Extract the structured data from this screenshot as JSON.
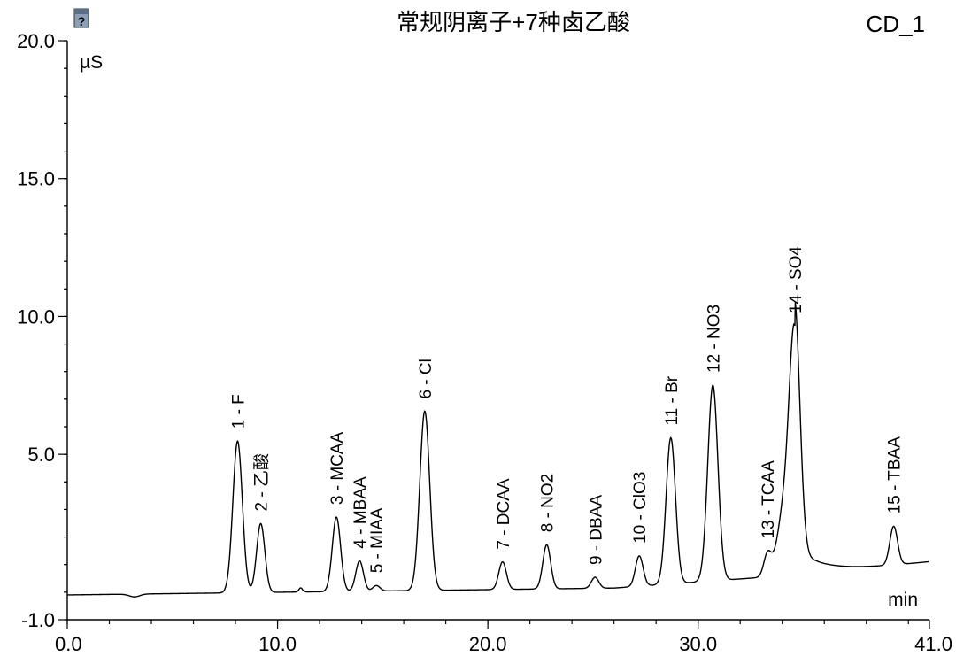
{
  "header": {
    "title": "常规阴离子+7种卤乙酸",
    "channel": "CD_1",
    "help_icon": "help-icon"
  },
  "chart_data": {
    "type": "line",
    "title": "常规阴离子+7种卤乙酸",
    "channel": "CD_1",
    "xlabel": "min",
    "ylabel": "µS",
    "xlim": [
      0.0,
      41.0
    ],
    "ylim": [
      -1.0,
      20.0
    ],
    "x_ticks": [
      0.0,
      10.0,
      20.0,
      30.0,
      41.0
    ],
    "x_tick_labels": [
      "0.0",
      "10.0",
      "20.0",
      "30.0",
      "41.0"
    ],
    "y_ticks": [
      -1.0,
      5.0,
      10.0,
      15.0,
      20.0
    ],
    "y_tick_labels": [
      "-1.0",
      "5.0",
      "10.0",
      "15.0",
      "20.0"
    ],
    "grid": false,
    "baseline": {
      "start": -0.1,
      "end": 1.1
    },
    "peaks": [
      {
        "label": "1 - F",
        "rt": 8.1,
        "height": 5.5
      },
      {
        "label": "2 - 乙酸",
        "rt": 9.2,
        "height": 2.5
      },
      {
        "label": "3 - MCAA",
        "rt": 12.8,
        "height": 2.7
      },
      {
        "label": "4 - MBAA",
        "rt": 13.9,
        "height": 1.1
      },
      {
        "label": "5 - MIAA",
        "rt": 14.7,
        "height": 0.2
      },
      {
        "label": "6 - Cl",
        "rt": 17.0,
        "height": 6.5
      },
      {
        "label": "7 - DCAA",
        "rt": 20.7,
        "height": 1.0
      },
      {
        "label": "8 - NO2",
        "rt": 22.8,
        "height": 1.6
      },
      {
        "label": "9 - DBAA",
        "rt": 25.1,
        "height": 0.4
      },
      {
        "label": "10 - ClO3",
        "rt": 27.2,
        "height": 1.1
      },
      {
        "label": "11 - Br",
        "rt": 28.7,
        "height": 5.3
      },
      {
        "label": "12 - NO3",
        "rt": 30.7,
        "height": 7.1
      },
      {
        "label": "13 - TCAA",
        "rt": 33.3,
        "height": 0.8
      },
      {
        "label": "14 - SO4",
        "rt": 34.6,
        "height": 7.9
      },
      {
        "label": "15 - TBAA",
        "rt": 39.3,
        "height": 1.4
      }
    ]
  }
}
